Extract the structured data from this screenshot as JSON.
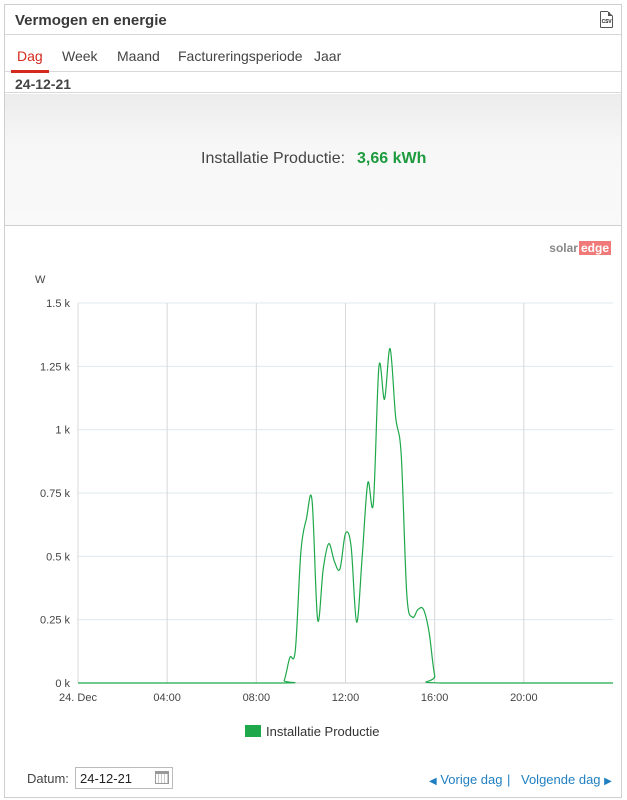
{
  "header": {
    "title": "Vermogen en energie",
    "csv_label": "CSV"
  },
  "tabs": [
    {
      "label": "Dag",
      "active": true
    },
    {
      "label": "Week",
      "active": false
    },
    {
      "label": "Maand",
      "active": false
    },
    {
      "label": "Factureringsperiode",
      "active": false
    },
    {
      "label": "Jaar",
      "active": false
    }
  ],
  "current_date": "24-12-21",
  "summary": {
    "label": "Installatie Productie:",
    "value": "3,66 kWh"
  },
  "logo": {
    "solar": "solar",
    "edge": "edge"
  },
  "colors": {
    "accent": "#d42a1e",
    "series": "#1ea84a",
    "value": "#1e9b3e",
    "link": "#1f7fc0"
  },
  "chart_data": {
    "type": "line",
    "title": "",
    "ylabel": "W",
    "xlabel": "",
    "ylim": [
      0,
      1500
    ],
    "xlim": [
      0,
      24
    ],
    "yticks": [
      {
        "value": 0,
        "label": "0 k"
      },
      {
        "value": 250,
        "label": "0.25 k"
      },
      {
        "value": 500,
        "label": "0.5 k"
      },
      {
        "value": 750,
        "label": "0.75 k"
      },
      {
        "value": 1000,
        "label": "1 k"
      },
      {
        "value": 1250,
        "label": "1.25 k"
      },
      {
        "value": 1500,
        "label": "1.5 k"
      }
    ],
    "xticks": [
      {
        "value": 0,
        "label": "24. Dec"
      },
      {
        "value": 4,
        "label": "04:00"
      },
      {
        "value": 8,
        "label": "08:00"
      },
      {
        "value": 12,
        "label": "12:00"
      },
      {
        "value": 16,
        "label": "16:00"
      },
      {
        "value": 20,
        "label": "20:00"
      }
    ],
    "grid": true,
    "legend": "bottom-center",
    "series": [
      {
        "name": "Installatie Productie",
        "color": "#1ea84a",
        "points": [
          [
            0,
            0
          ],
          [
            9.0,
            0
          ],
          [
            9.25,
            10
          ],
          [
            9.5,
            100
          ],
          [
            9.75,
            130
          ],
          [
            10.0,
            520
          ],
          [
            10.25,
            650
          ],
          [
            10.5,
            720
          ],
          [
            10.75,
            250
          ],
          [
            11.0,
            450
          ],
          [
            11.25,
            550
          ],
          [
            11.5,
            480
          ],
          [
            11.75,
            450
          ],
          [
            12.0,
            590
          ],
          [
            12.25,
            540
          ],
          [
            12.5,
            240
          ],
          [
            12.75,
            500
          ],
          [
            13.0,
            790
          ],
          [
            13.25,
            710
          ],
          [
            13.5,
            1250
          ],
          [
            13.75,
            1120
          ],
          [
            14.0,
            1320
          ],
          [
            14.25,
            1050
          ],
          [
            14.5,
            900
          ],
          [
            14.75,
            350
          ],
          [
            15.0,
            260
          ],
          [
            15.25,
            290
          ],
          [
            15.5,
            290
          ],
          [
            15.75,
            200
          ],
          [
            16.0,
            30
          ],
          [
            16.25,
            0
          ],
          [
            24,
            0
          ]
        ]
      }
    ]
  },
  "footer": {
    "date_label": "Datum:",
    "date_value": "24-12-21",
    "prev_label": "Vorige dag",
    "next_label": "Volgende dag",
    "separator": "|"
  }
}
